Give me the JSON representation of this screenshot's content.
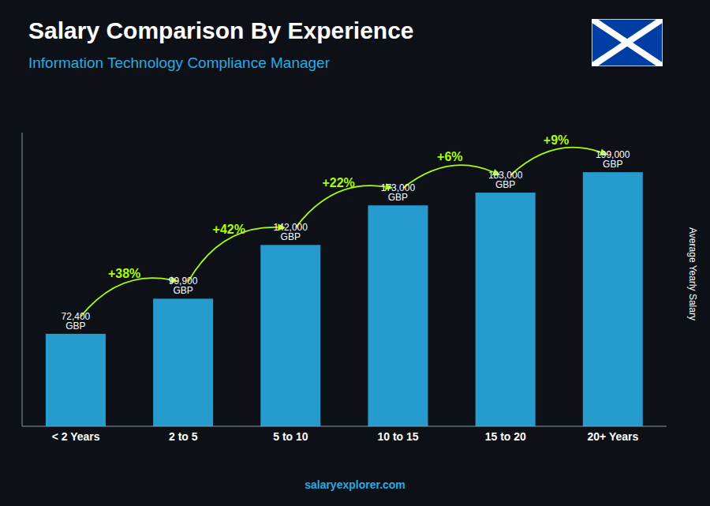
{
  "chart_data": {
    "type": "bar",
    "title": "Salary Comparison By Experience",
    "subtitle": "Information Technology Compliance Manager",
    "categories": [
      "< 2 Years",
      "2 to 5",
      "5 to 10",
      "10 to 15",
      "15 to 20",
      "20+ Years"
    ],
    "values": [
      72400,
      99900,
      142000,
      173000,
      183000,
      199000
    ],
    "value_labels": [
      "72,400 GBP",
      "99,900 GBP",
      "142,000 GBP",
      "173,000 GBP",
      "183,000 GBP",
      "199,000 GBP"
    ],
    "data_labels": true,
    "color": "#29ABE2",
    "ylabel": "Average Yearly Salary",
    "ylim": [
      0,
      230000
    ],
    "tick_labels": "x",
    "annotations": [
      {
        "text": "+38%",
        "color": "#AAFF00"
      },
      {
        "text": "+42%",
        "color": "#AAFF00"
      },
      {
        "text": "+22%",
        "color": "#AAFF00"
      },
      {
        "text": "+6%",
        "color": "#AAFF00"
      },
      {
        "text": "+9%",
        "color": "#AAFF00"
      }
    ],
    "watermark": "salaryexplorer.com"
  }
}
